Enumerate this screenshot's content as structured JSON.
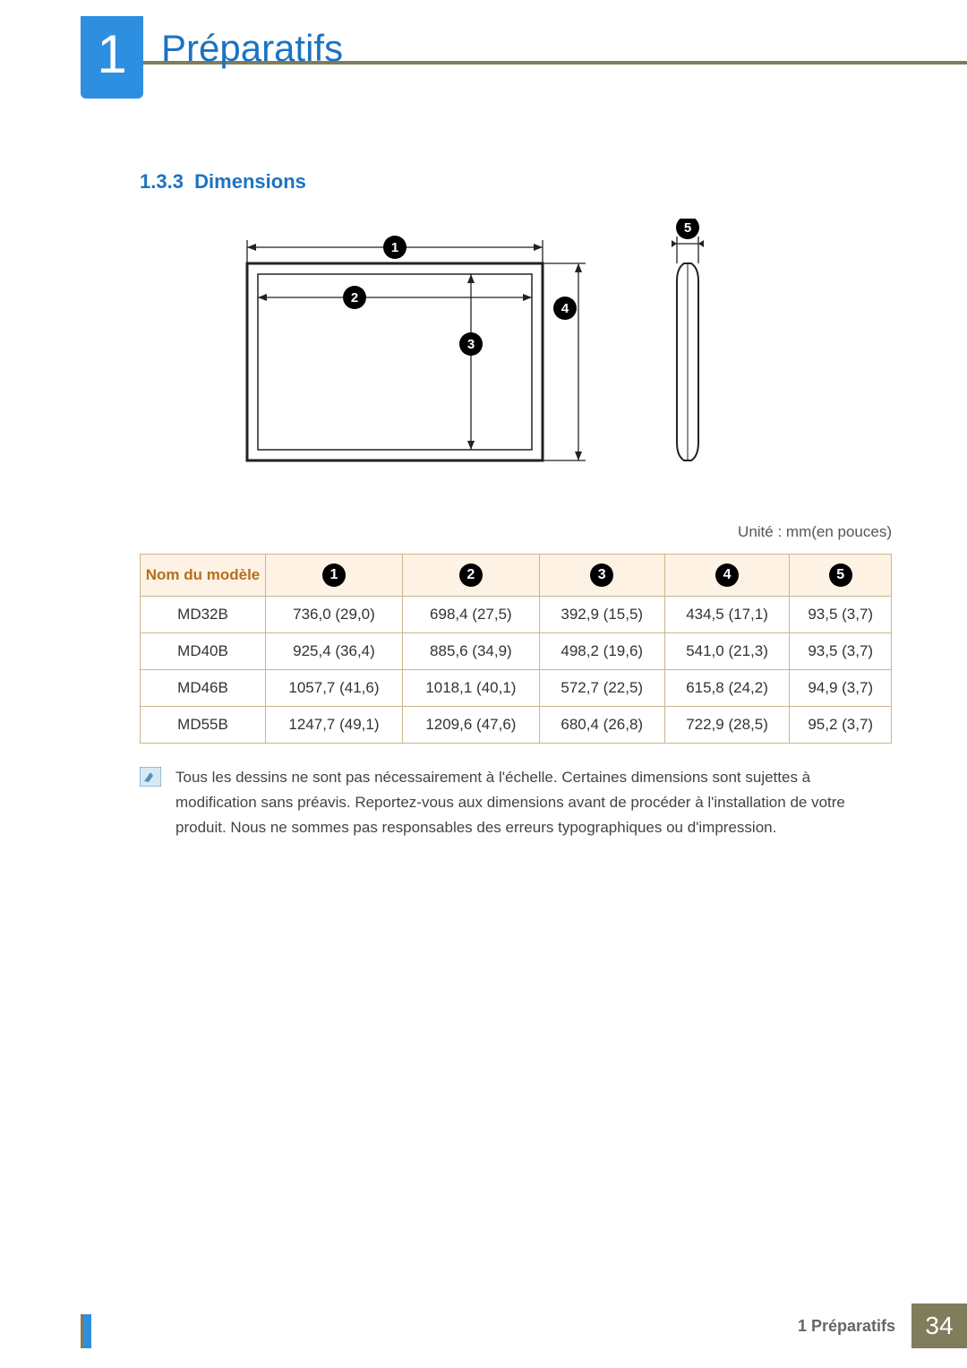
{
  "header": {
    "chapter_number": "1",
    "chapter_title": "Préparatifs"
  },
  "section": {
    "number": "1.3.3",
    "title": "Dimensions"
  },
  "diagram": {
    "front_view": {
      "callouts": [
        "1",
        "2",
        "3",
        "4"
      ]
    },
    "side_view": {
      "callouts": [
        "5"
      ]
    }
  },
  "unit_note": "Unité : mm(en pouces)",
  "table": {
    "header_model": "Nom du modèle",
    "col_callouts": [
      "1",
      "2",
      "3",
      "4",
      "5"
    ],
    "rows": [
      {
        "model": "MD32B",
        "vals": [
          "736,0 (29,0)",
          "698,4 (27,5)",
          "392,9 (15,5)",
          "434,5 (17,1)",
          "93,5 (3,7)"
        ]
      },
      {
        "model": "MD40B",
        "vals": [
          "925,4 (36,4)",
          "885,6 (34,9)",
          "498,2 (19,6)",
          "541,0 (21,3)",
          "93,5 (3,7)"
        ]
      },
      {
        "model": "MD46B",
        "vals": [
          "1057,7 (41,6)",
          "1018,1 (40,1)",
          "572,7 (22,5)",
          "615,8 (24,2)",
          "94,9 (3,7)"
        ]
      },
      {
        "model": "MD55B",
        "vals": [
          "1247,7 (49,1)",
          "1209,6 (47,6)",
          "680,4 (26,8)",
          "722,9 (28,5)",
          "95,2 (3,7)"
        ]
      }
    ],
    "header_bg": "#fdf2e3",
    "header_color": "#b46f1f",
    "border_color": "#c9b78a"
  },
  "note_text": "Tous les dessins ne sont pas nécessairement à l'échelle. Certaines dimensions sont sujettes à modification sans préavis. Reportez-vous aux dimensions avant de procéder à l'installation de votre produit. Nous ne sommes pas responsables des erreurs typographiques ou d'impression.",
  "footer": {
    "label": "1 Préparatifs",
    "page": "34"
  },
  "colors": {
    "accent_blue": "#1b73c4",
    "badge_blue": "#2e8fe0",
    "olive": "#7f7d5c",
    "callout_circle": "#000000"
  }
}
